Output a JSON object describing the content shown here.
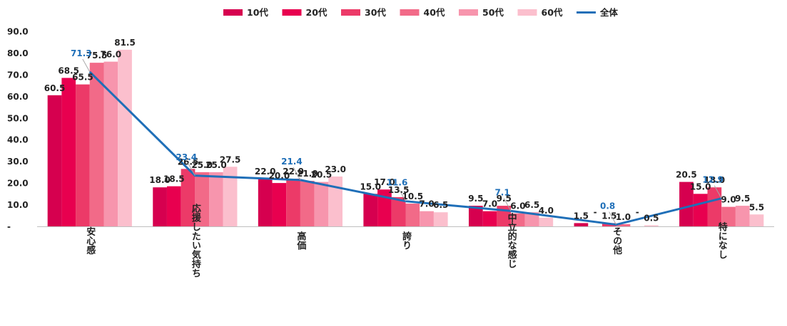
{
  "chart_data": {
    "type": "bar",
    "title": "",
    "xlabel": "",
    "ylabel": "",
    "ylim": [
      0,
      90
    ],
    "yticks": [
      0,
      10,
      20,
      30,
      40,
      50,
      60,
      70,
      80,
      90
    ],
    "ytick_labels": [
      "-",
      "10.0",
      "20.0",
      "30.0",
      "40.0",
      "50.0",
      "60.0",
      "70.0",
      "80.0",
      "90.0"
    ],
    "legend_position": "top",
    "categories": [
      "安心感",
      "応援したい気持ち",
      "高価",
      "誇り",
      "中立的な感じ",
      "その他",
      "特になし"
    ],
    "series": [
      {
        "name": "10代",
        "color": "#d6004f",
        "values": [
          60.5,
          18.0,
          22.0,
          15.0,
          9.5,
          1.5,
          20.5
        ],
        "labels": [
          "60.5",
          "18.0",
          "22.0",
          "15.0",
          "9.5",
          "1.5",
          "20.5"
        ]
      },
      {
        "name": "20代",
        "color": "#e8004f",
        "values": [
          68.5,
          18.5,
          20.0,
          17.0,
          7.0,
          0,
          15.0
        ],
        "labels": [
          "68.5",
          "18.5",
          "20.0",
          "17.0",
          "7.0",
          "-",
          "15.0"
        ]
      },
      {
        "name": "30代",
        "color": "#ec3a68",
        "values": [
          65.5,
          26.5,
          22.0,
          13.5,
          9.5,
          1.5,
          18.0
        ],
        "labels": [
          "65.5",
          "26.5",
          "22.0",
          "13.5",
          "9.5",
          "1.5",
          "18.0"
        ]
      },
      {
        "name": "40代",
        "color": "#f26a88",
        "values": [
          75.5,
          25.0,
          21.0,
          10.5,
          6.0,
          1.0,
          9.0
        ],
        "labels": [
          "75.5",
          "25.0",
          "21.0",
          "10.5",
          "6.0",
          "1.0",
          "9.0"
        ]
      },
      {
        "name": "50代",
        "color": "#f795ad",
        "values": [
          76.0,
          25.0,
          20.5,
          7.0,
          6.5,
          0,
          9.5
        ],
        "labels": [
          "76.0",
          "25.0",
          "20.5",
          "7.0",
          "6.5",
          "-",
          "9.5"
        ]
      },
      {
        "name": "60代",
        "color": "#fbbfcd",
        "values": [
          81.5,
          27.5,
          23.0,
          6.5,
          4.0,
          0.5,
          5.5
        ],
        "labels": [
          "81.5",
          "27.5",
          "23.0",
          "6.5",
          "4.0",
          "0.5",
          "5.5"
        ]
      }
    ],
    "line_series": {
      "name": "全体",
      "color": "#1f6fb8",
      "values": [
        71.3,
        23.4,
        21.4,
        11.6,
        7.1,
        0.8,
        12.9
      ],
      "labels": [
        "71.3",
        "23.4",
        "21.4",
        "11.6",
        "7.1",
        "0.8",
        "12.9"
      ]
    }
  }
}
